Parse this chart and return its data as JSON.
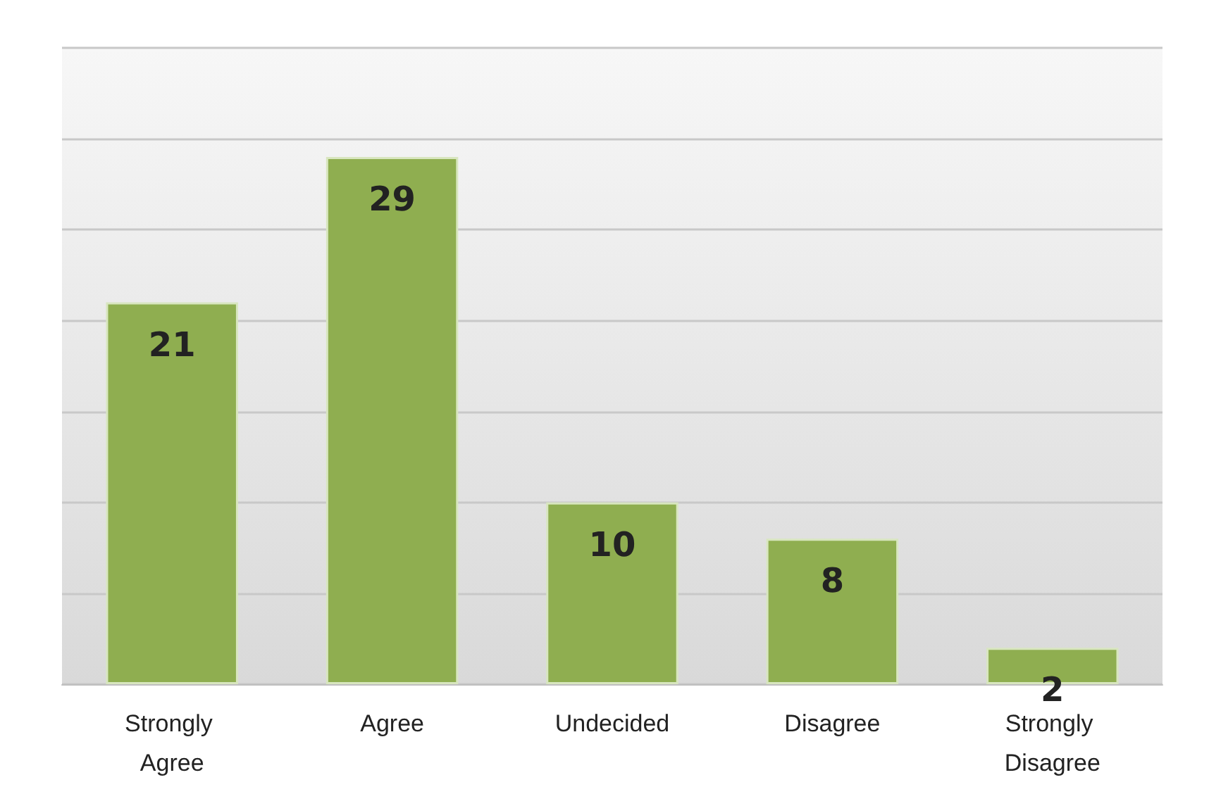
{
  "chart_data": {
    "type": "bar",
    "categories": [
      "Strongly Agree",
      "Agree",
      "Undecided",
      "Disagree",
      "Strongly Disagree"
    ],
    "values": [
      21,
      29,
      10,
      8,
      2
    ],
    "color": "#8fae50",
    "ylim": [
      0,
      35
    ],
    "yticks": [
      0,
      5,
      10,
      15,
      20,
      25,
      30,
      35
    ],
    "grid": "y",
    "tick_labels": "x",
    "data_labels": true
  }
}
